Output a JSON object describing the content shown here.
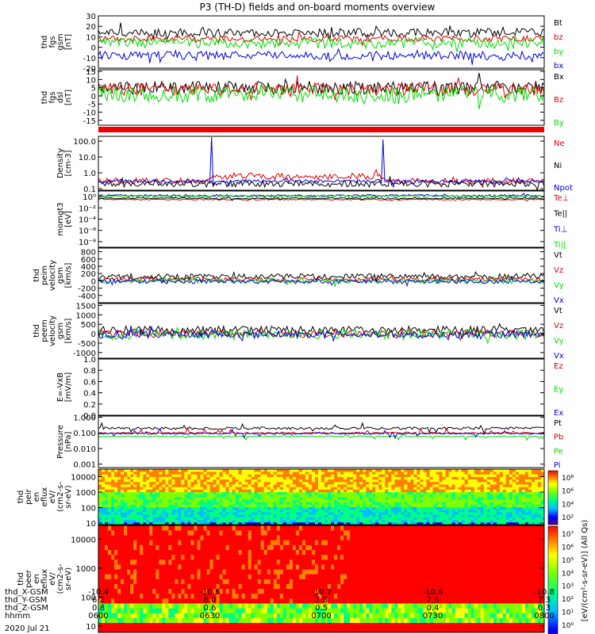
{
  "title": "P3 (TH-D) fields and on-board moments overview",
  "date_label": "2020 Jul 21",
  "colors": {
    "black": "#000000",
    "red": "#dd0000",
    "green": "#00dd00",
    "blue": "#0000dd"
  },
  "chart_data": [
    {
      "id": "fgs_gsm",
      "type": "line",
      "ylabel": [
        "thd",
        "fgs",
        "gsm",
        "[nT]"
      ],
      "yscale": "linear",
      "ylim": [
        -20,
        30
      ],
      "yticks": [
        "30",
        "20",
        "10",
        "0",
        "-10",
        "-20"
      ],
      "tick_values": [
        30,
        20,
        10,
        0,
        -10,
        -20
      ],
      "series": [
        {
          "name": "Bt",
          "color": "#000000",
          "level": 14,
          "var": 4
        },
        {
          "name": "bz",
          "color": "#dd0000",
          "level": 8,
          "var": 3
        },
        {
          "name": "by",
          "color": "#00dd00",
          "level": 4,
          "var": 5
        },
        {
          "name": "bx",
          "color": "#0000dd",
          "level": -8,
          "var": 4
        }
      ]
    },
    {
      "id": "fgs_dsl",
      "type": "line",
      "ylabel": [
        "thd",
        "fgs",
        "dsl",
        "[nT]"
      ],
      "yscale": "linear",
      "ylim": [
        -18,
        16
      ],
      "yticks": [
        "15",
        "10",
        "5",
        "0",
        "-5",
        "-10",
        "-15"
      ],
      "tick_values": [
        15,
        10,
        5,
        0,
        -5,
        -10,
        -15
      ],
      "series": [
        {
          "name": "Bx",
          "color": "#000000",
          "level": 5,
          "var": 4
        },
        {
          "name": "Bz",
          "color": "#dd0000",
          "level": 4,
          "var": 4
        },
        {
          "name": "By",
          "color": "#00dd00",
          "level": 1,
          "var": 5
        }
      ]
    },
    {
      "id": "density",
      "type": "line",
      "ylabel": [
        "Density",
        "[cm-3]"
      ],
      "yscale": "log",
      "ylim": [
        0.08,
        200
      ],
      "yticks": [
        "100.0",
        "10.0",
        "1.0",
        "0.1"
      ],
      "tick_values": [
        100,
        10,
        1,
        0.1
      ],
      "series": [
        {
          "name": "Ne",
          "color": "#dd0000",
          "level": 0.5,
          "var": 0.2
        },
        {
          "name": "Ni",
          "color": "#000000",
          "level": 0.2,
          "var": 0.2
        },
        {
          "name": "Npot",
          "color": "#0000dd",
          "level": 0.3,
          "var": 0.1
        }
      ]
    },
    {
      "id": "moms",
      "type": "line",
      "ylabel": [
        "momgt3",
        "[eV]"
      ],
      "yscale": "log",
      "ylim": [
        1e-09,
        10
      ],
      "yticks": [
        "10⁰",
        "10⁻²",
        "10⁻⁴",
        "10⁻⁶",
        "10⁻⁸"
      ],
      "tick_values": [
        1,
        0.01,
        0.0001,
        1e-06,
        1e-08
      ],
      "series": [
        {
          "name": "Te⊥",
          "color": "#dd0000",
          "level": 0.3,
          "var": 0.1
        },
        {
          "name": "Te||",
          "color": "#000000",
          "level": 0.5,
          "var": 0.1
        },
        {
          "name": "Ti⊥",
          "color": "#0000dd",
          "level": 1.5,
          "var": 0.2
        },
        {
          "name": "Ti||",
          "color": "#00dd00",
          "level": 1.2,
          "var": 0.2
        }
      ]
    },
    {
      "id": "peim_vel",
      "type": "line",
      "ylabel": [
        "thd",
        "peim",
        "velocity",
        "gsm",
        "[km/s]"
      ],
      "yscale": "linear",
      "ylim": [
        -600,
        900
      ],
      "yticks": [
        "800",
        "600",
        "400",
        "200",
        "0",
        "-200",
        "-400"
      ],
      "tick_values": [
        800,
        600,
        400,
        200,
        0,
        -200,
        -400
      ],
      "series": [
        {
          "name": "Vt",
          "color": "#000000",
          "level": 120,
          "var": 80
        },
        {
          "name": "Vz",
          "color": "#dd0000",
          "level": 40,
          "var": 60
        },
        {
          "name": "Vy",
          "color": "#00dd00",
          "level": 0,
          "var": 70
        },
        {
          "name": "Vx",
          "color": "#0000dd",
          "level": -20,
          "var": 60
        }
      ]
    },
    {
      "id": "peem_vel",
      "type": "line",
      "ylabel": [
        "thd",
        "peem",
        "velocity",
        "gsm",
        "[km/s]"
      ],
      "yscale": "linear",
      "ylim": [
        -1300,
        1600
      ],
      "yticks": [
        "1500",
        "1000",
        "500",
        "0",
        "-500",
        "-1000"
      ],
      "tick_values": [
        1500,
        1000,
        500,
        0,
        -500,
        -1000
      ],
      "series": [
        {
          "name": "Vt",
          "color": "#000000",
          "level": 200,
          "var": 200
        },
        {
          "name": "Vz",
          "color": "#dd0000",
          "level": 0,
          "var": 200
        },
        {
          "name": "Vy",
          "color": "#00dd00",
          "level": -50,
          "var": 250
        },
        {
          "name": "Vx",
          "color": "#0000dd",
          "level": -50,
          "var": 200
        }
      ]
    },
    {
      "id": "efield",
      "type": "line",
      "ylabel": [
        "E=-VxB",
        "[mV/m]"
      ],
      "yscale": "linear",
      "ylim": [
        0,
        1
      ],
      "yticks": [
        "1.0",
        "0.8",
        "0.6",
        "0.4",
        "0.2",
        "0.0"
      ],
      "tick_values": [
        1,
        0.8,
        0.6,
        0.4,
        0.2,
        0
      ],
      "series": [
        {
          "name": "Ez",
          "color": "#dd0000"
        },
        {
          "name": "Ey",
          "color": "#00dd00"
        },
        {
          "name": "Ex",
          "color": "#0000dd"
        }
      ]
    },
    {
      "id": "pressure",
      "type": "line",
      "ylabel": [
        "Pressure",
        "[nPa]"
      ],
      "yscale": "log",
      "ylim": [
        0.0006,
        1.2
      ],
      "yticks": [
        "1.000",
        "0.100",
        "0.010",
        "0.001"
      ],
      "tick_values": [
        1,
        0.1,
        0.01,
        0.001
      ],
      "series": [
        {
          "name": "Pt",
          "color": "#000000",
          "level": 0.2,
          "var": 0.08
        },
        {
          "name": "Pb",
          "color": "#dd0000",
          "level": 0.1,
          "var": 0.05
        },
        {
          "name": "Pe",
          "color": "#00dd00",
          "level": 0.06,
          "var": 0.03
        },
        {
          "name": "Pi",
          "color": "#0000dd",
          "level": 0.09,
          "var": 0.04
        }
      ]
    },
    {
      "id": "peir_en",
      "type": "heatmap",
      "ylabel": [
        "thd",
        "peir",
        "en",
        "eflux",
        "eV/",
        "(cm2-s-",
        "sr-eV)"
      ],
      "yscale": "log",
      "ylim": [
        8,
        30000
      ],
      "yticks": [
        "10000",
        "1000",
        "100",
        "10"
      ],
      "tick_values": [
        10000,
        1000,
        100,
        10
      ],
      "colorbar_ticks": [
        "10⁸",
        "10⁶",
        "10⁴",
        "10²"
      ],
      "colorbar_range": [
        1,
        9
      ]
    },
    {
      "id": "peer_en",
      "type": "heatmap",
      "ylabel": [
        "thd",
        "peer",
        "en",
        "eflux",
        "eV/",
        "(cm2-s-",
        "sr-eV)"
      ],
      "yscale": "log",
      "ylim": [
        6,
        30000
      ],
      "yticks": [
        "10000",
        "1000",
        "100",
        "10"
      ],
      "tick_values": [
        10000,
        1000,
        100,
        10
      ],
      "colorbar_ticks": [
        "10⁷",
        "10⁶",
        "10⁵",
        "10⁴",
        "10³",
        "10²",
        "10¹",
        "10⁰"
      ],
      "colorbar_range": [
        0,
        7
      ]
    }
  ],
  "colorbar_title": "[eV/(cm²-s-sr-eV)] (All Qs)",
  "x_axis": {
    "row_labels": [
      "thd_X-GSM",
      "thd_Y-GSM",
      "thd_Z-GSM",
      "hhmm"
    ],
    "ticks": [
      {
        "X": "-10.4",
        "Y": "6.2",
        "Z": "0.8",
        "hhmm": "0600"
      },
      {
        "X": "-10.6",
        "Y": "8.0",
        "Z": "0.6",
        "hhmm": "0630"
      },
      {
        "X": "-10.7",
        "Y": "7.6",
        "Z": "0.5",
        "hhmm": "0700"
      },
      {
        "X": "-10.8",
        "Y": "7.6",
        "Z": "0.4",
        "hhmm": "0730"
      },
      {
        "X": "-10.8",
        "Y": "7.3",
        "Z": "0.3",
        "hhmm": "0800"
      }
    ]
  }
}
